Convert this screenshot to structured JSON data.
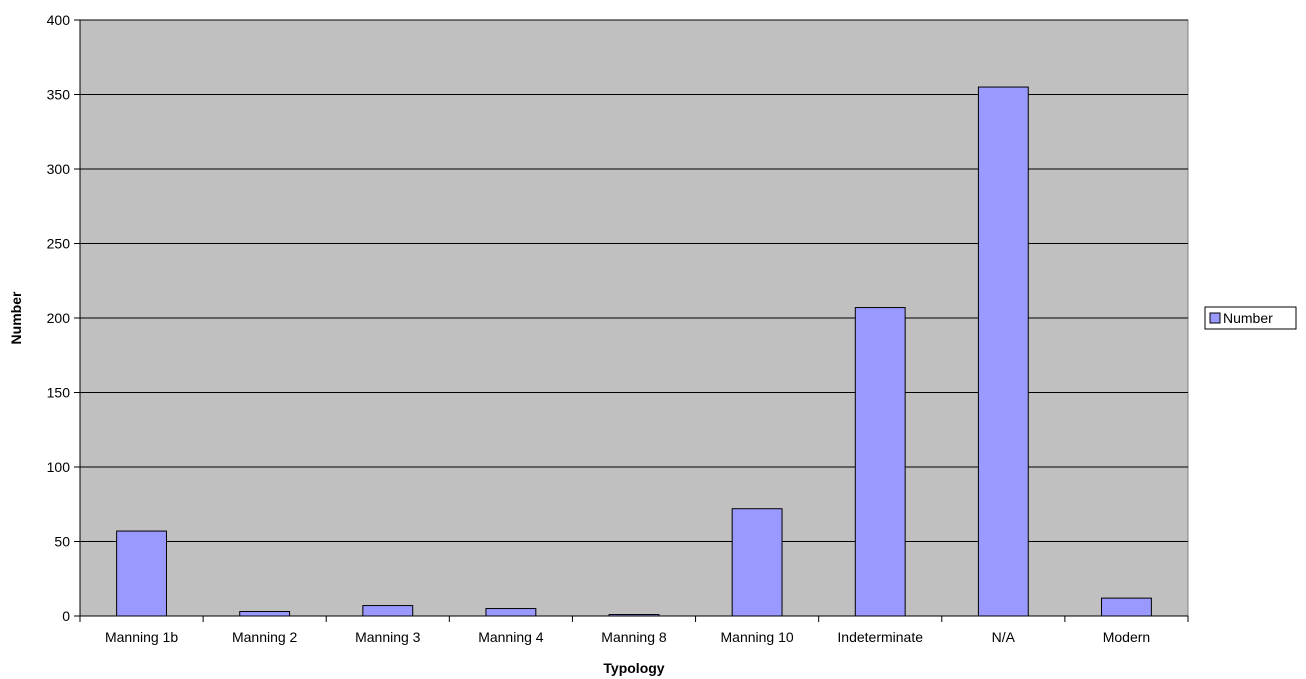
{
  "chart_data": {
    "type": "bar",
    "title": "",
    "xlabel": "Typology",
    "ylabel": "Number",
    "categories": [
      "Manning 1b",
      "Manning 2",
      "Manning 3",
      "Manning 4",
      "Manning 8",
      "Manning 10",
      "Indeterminate",
      "N/A",
      "Modern"
    ],
    "series": [
      {
        "name": "Number",
        "values": [
          57,
          3,
          7,
          5,
          1,
          72,
          207,
          355,
          12
        ]
      }
    ],
    "ylim": [
      0,
      400
    ],
    "yticks": [
      0,
      50,
      100,
      150,
      200,
      250,
      300,
      350,
      400
    ],
    "grid": true,
    "legend_position": "right",
    "colors": {
      "bar_fill": "#9999ff",
      "bar_stroke": "#000000",
      "plot_background": "#c0c0c0",
      "gridline": "#000000",
      "axis": "#000000"
    }
  }
}
